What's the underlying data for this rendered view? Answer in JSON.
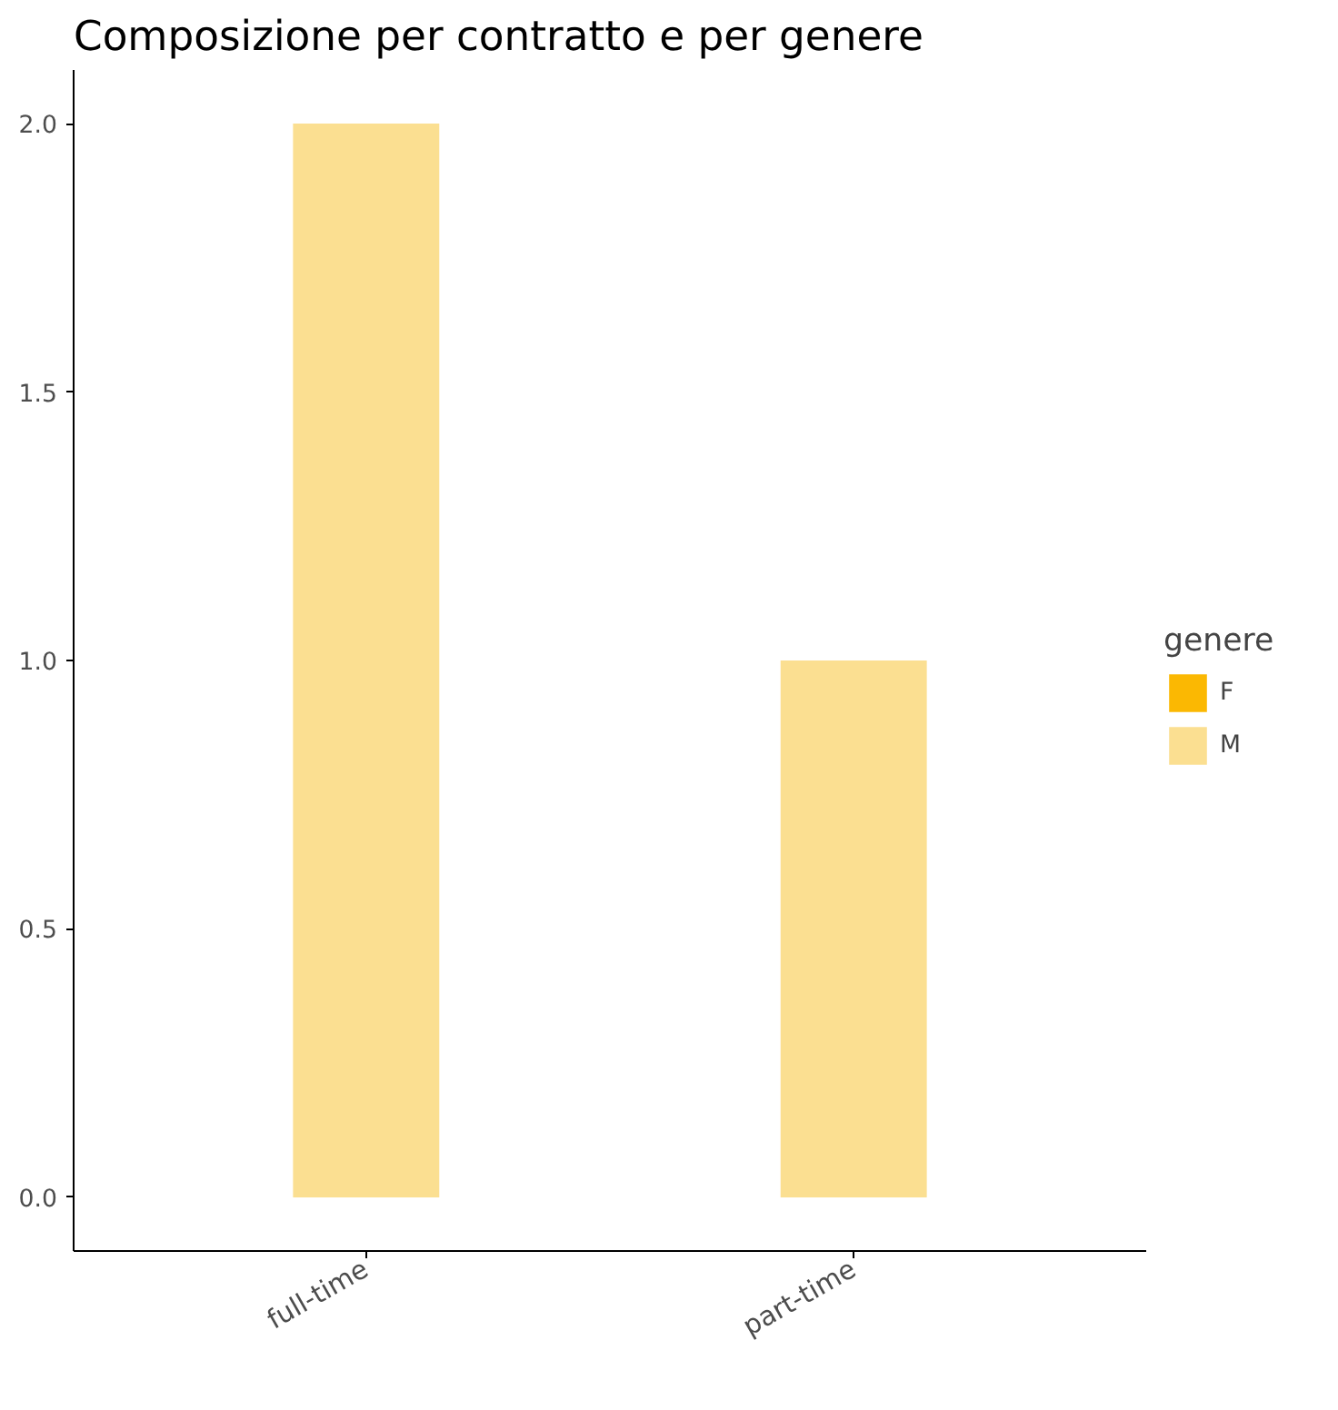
{
  "chart_data": {
    "type": "bar",
    "title": "Composizione per contratto e per genere",
    "categories": [
      "full-time",
      "part-time"
    ],
    "legend_title": "genere",
    "legend": "right",
    "series": [
      {
        "name": "F",
        "color": "#fbb802",
        "values": [
          0,
          0
        ]
      },
      {
        "name": "M",
        "color": "#fbdf91",
        "values": [
          2,
          1
        ]
      }
    ],
    "ylim": [
      -0.1,
      2.1
    ],
    "yticks": [
      {
        "value": 0,
        "label": "0.0"
      },
      {
        "value": 0.5,
        "label": "0.5"
      },
      {
        "value": 1,
        "label": "1.0"
      },
      {
        "value": 1.5,
        "label": "1.5"
      },
      {
        "value": 2,
        "label": "2.0"
      }
    ],
    "grid": false
  }
}
